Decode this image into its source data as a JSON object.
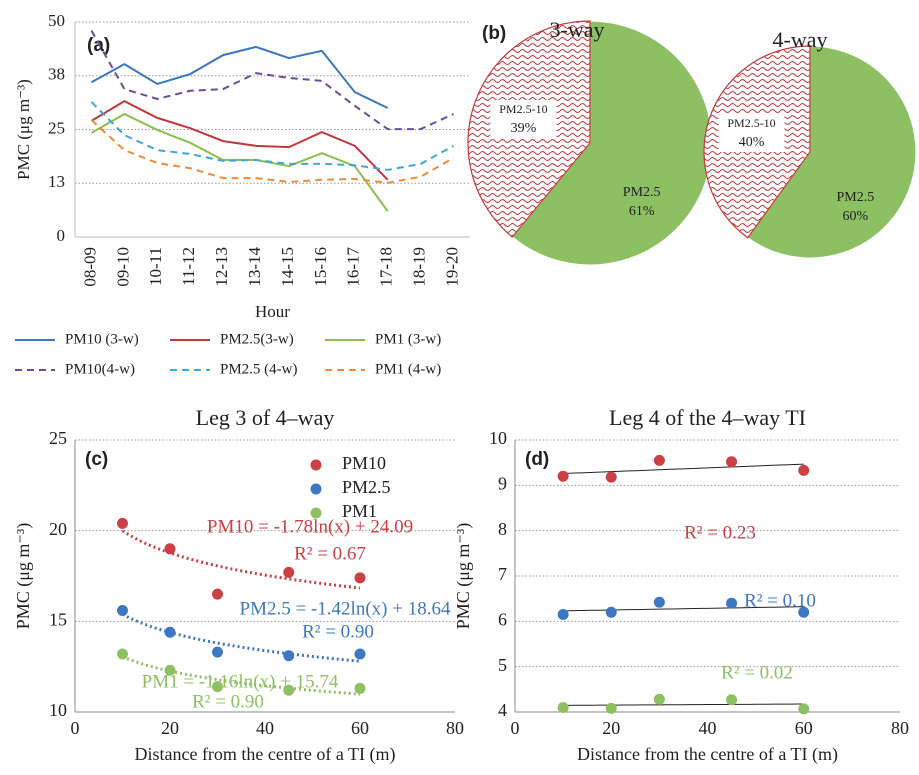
{
  "chart_data": [
    {
      "type": "line",
      "label": "(a)",
      "xlabel": "Hour",
      "ylabel": "PMC (μg m⁻³)",
      "categories": [
        "08-09",
        "09-10",
        "10-11",
        "11-12",
        "12-13",
        "13-14",
        "14-15",
        "15-16",
        "16-17",
        "17-18",
        "18-19",
        "19-20"
      ],
      "ylim": [
        0,
        50
      ],
      "yticks": [
        0,
        {
          "value": 12.5,
          "label": "13"
        },
        25,
        {
          "value": 37.5,
          "label": "38"
        },
        50
      ],
      "grid": true,
      "series": [
        {
          "name": "PM10 (3-w)",
          "color": "#3a78bf",
          "style": "solid",
          "values": [
            36,
            40.2,
            35.6,
            37.9,
            42.3,
            44.2,
            41.6,
            43.3,
            33.7,
            30,
            null,
            null
          ]
        },
        {
          "name": "PM2.5(3-w)",
          "color": "#c0393b",
          "style": "solid",
          "values": [
            27,
            31.6,
            27.7,
            25.3,
            22.3,
            21.2,
            20.9,
            24.4,
            21.2,
            13.3,
            null,
            null
          ]
        },
        {
          "name": "PM1 (3-w)",
          "color": "#8cbf50",
          "style": "solid",
          "values": [
            24.2,
            28.6,
            24.9,
            21.9,
            17.9,
            17.9,
            16.5,
            19.5,
            16.5,
            6,
            null,
            null
          ]
        },
        {
          "name": "PM10(4-w)",
          "color": "#6a4f9c",
          "style": "dashed",
          "values": [
            48,
            34.4,
            32.1,
            34,
            34.4,
            38.1,
            37,
            36.3,
            30.5,
            25.1,
            25.1,
            28.6
          ]
        },
        {
          "name": "PM2.5 (4-w)",
          "color": "#3fa7d6",
          "style": "dashed",
          "values": [
            31.4,
            23.7,
            20.2,
            19.3,
            17.7,
            17.9,
            17,
            17,
            16.7,
            15.6,
            17,
            21.2
          ]
        },
        {
          "name": "PM1 (4-w)",
          "color": "#f28c38",
          "style": "dashed",
          "values": [
            27.2,
            20.2,
            17.2,
            16,
            13.7,
            13.7,
            12.8,
            13.3,
            13.5,
            12.6,
            14,
            18.4
          ]
        }
      ]
    },
    {
      "type": "pie",
      "label": "(b)",
      "title": "3-way",
      "categories": [
        "PM2.5",
        "PM2.5-10"
      ],
      "values": [
        61,
        39
      ],
      "value_labels": [
        "61%",
        "39%"
      ],
      "colors": [
        "#8cc063",
        "hatch"
      ]
    },
    {
      "type": "pie",
      "title": "4-way",
      "categories": [
        "PM2.5",
        "PM2.5-10"
      ],
      "values": [
        60,
        40
      ],
      "value_labels": [
        "60%",
        "40%"
      ],
      "colors": [
        "#8cc063",
        "hatch"
      ]
    },
    {
      "type": "scatter",
      "label": "(c)",
      "title": "Leg 3 of 4–way",
      "xlabel": "Distance from the centre of a TI (m)",
      "ylabel": "PMC (μg m⁻³)",
      "xlim": [
        0,
        80
      ],
      "xticks": [
        0,
        20,
        40,
        60,
        80
      ],
      "ylim": [
        10,
        25
      ],
      "yticks": [
        10,
        15,
        20,
        25
      ],
      "grid": true,
      "legend": "upper right",
      "trendline": "log",
      "x": [
        10,
        20,
        30,
        45,
        60
      ],
      "series": [
        {
          "name": "PM10",
          "color": "#c94045",
          "values": [
            20.4,
            19,
            16.5,
            17.7,
            17.4
          ],
          "equation": "PM10 = -1.78ln(x) + 24.09",
          "r2": "R² = 0.67"
        },
        {
          "name": "PM2.5",
          "color": "#3e78c2",
          "values": [
            15.6,
            14.4,
            13.3,
            13.1,
            13.2
          ],
          "equation": "PM2.5 = -1.42ln(x) + 18.64",
          "r2": "R² = 0.90"
        },
        {
          "name": "PM1",
          "color": "#8cc063",
          "values": [
            13.2,
            12.3,
            11.4,
            11.2,
            11.3
          ],
          "equation": "PM1 = -1.16ln(x) + 15.74",
          "r2": "R² = 0.90"
        }
      ]
    },
    {
      "type": "scatter",
      "label": "(d)",
      "title": "Leg 4 of the 4–way TI",
      "xlabel": "Distance from the centre of a TI (m)",
      "ylabel": "PMC (μg m⁻³)",
      "xlim": [
        0,
        80
      ],
      "xticks": [
        0,
        20,
        40,
        60,
        80
      ],
      "ylim": [
        4,
        10
      ],
      "yticks": [
        4,
        5,
        6,
        7,
        8,
        9,
        10
      ],
      "grid": true,
      "trendline": "linear",
      "x": [
        10,
        20,
        30,
        45,
        60
      ],
      "series": [
        {
          "color": "#c94045",
          "values": [
            9.2,
            9.18,
            9.55,
            9.52,
            9.33
          ],
          "r2": "R² = 0.23"
        },
        {
          "color": "#3e78c2",
          "values": [
            6.15,
            6.2,
            6.42,
            6.4,
            6.2
          ],
          "r2": "R² = 0.10"
        },
        {
          "color": "#8cc063",
          "values": [
            4.1,
            4.08,
            4.28,
            4.27,
            4.07
          ],
          "r2": "R² = 0.02"
        }
      ]
    }
  ]
}
